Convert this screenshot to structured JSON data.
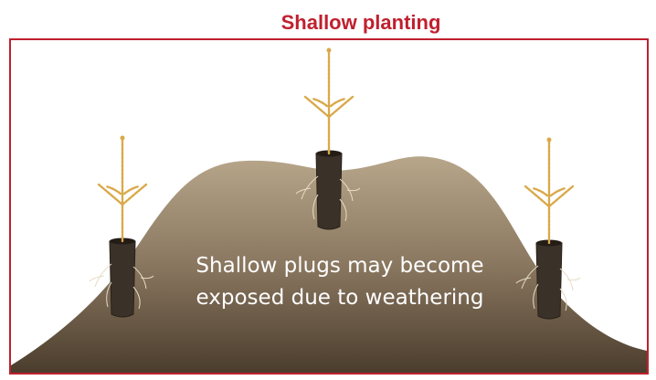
{
  "header": {
    "title": "Shallow planting"
  },
  "caption": {
    "lines": [
      "Shallow plugs may become",
      "exposed due to weathering"
    ]
  }
}
